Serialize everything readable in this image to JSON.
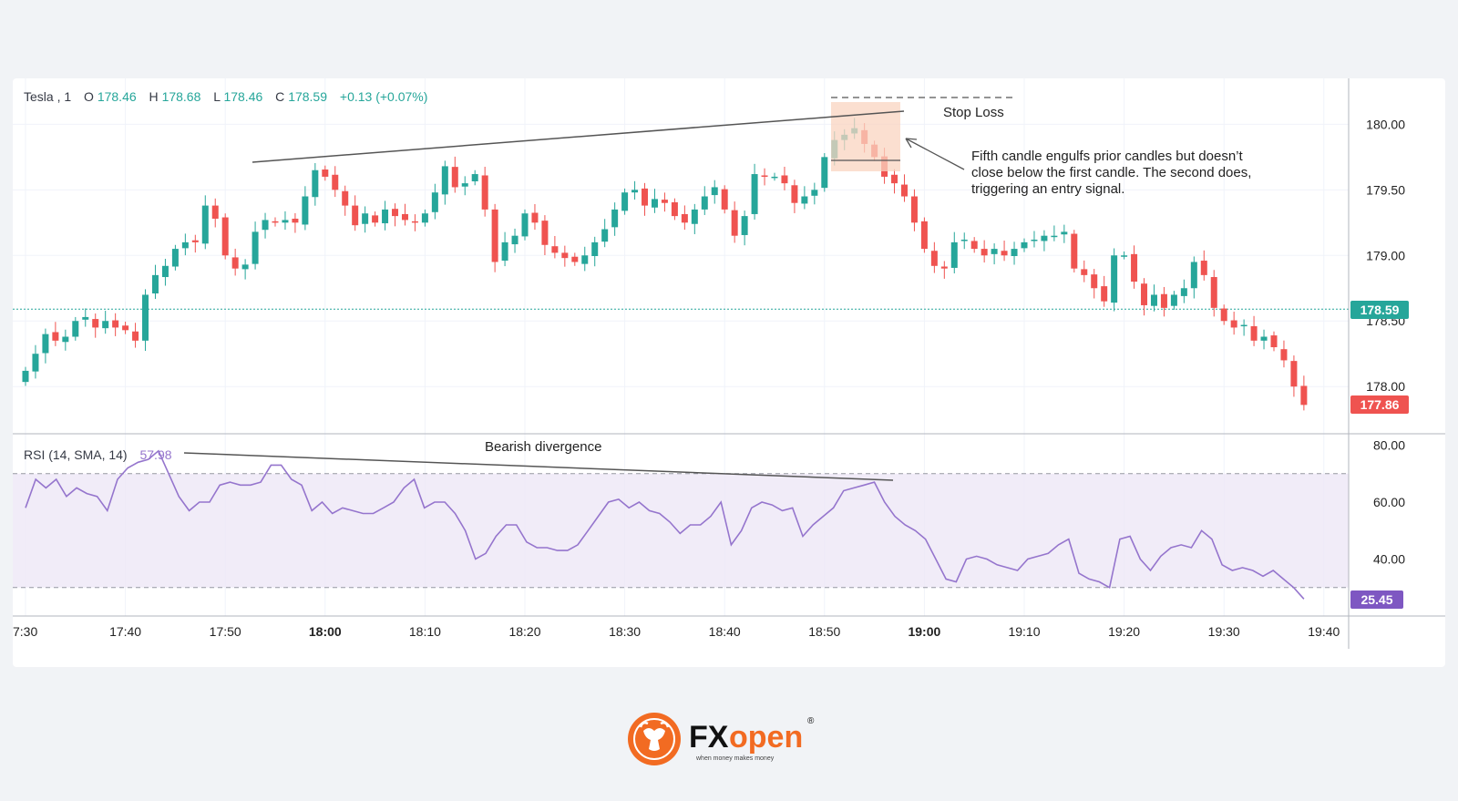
{
  "chart_data": {
    "type": "candlestick",
    "symbol": "Tesla",
    "interval": "1",
    "ohlc_legend": {
      "open_label": "O",
      "open": "178.46",
      "high_label": "H",
      "high": "178.68",
      "low_label": "L",
      "low": "178.46",
      "close_label": "C",
      "close": "178.59",
      "change": "+0.13 (+0.07%)"
    },
    "price_axis": {
      "ticks": [
        178.0,
        178.5,
        179.0,
        179.5,
        180.0
      ],
      "tick_labels": [
        "178.00",
        "178.50",
        "179.00",
        "179.50",
        "180.00"
      ],
      "range": [
        177.64,
        180.35
      ]
    },
    "time_axis": {
      "labels": [
        "7:30",
        "17:40",
        "17:50",
        "18:00",
        "18:10",
        "18:20",
        "18:30",
        "18:40",
        "18:50",
        "19:00",
        "19:10",
        "19:20",
        "19:30",
        "19:40"
      ],
      "bold_labels": [
        "18:00",
        "19:00"
      ]
    },
    "candles_close": [
      178.12,
      178.25,
      178.4,
      178.35,
      178.38,
      178.5,
      178.53,
      178.45,
      178.5,
      178.45,
      178.43,
      178.35,
      178.7,
      178.85,
      178.92,
      179.05,
      179.1,
      179.1,
      179.38,
      179.28,
      179.0,
      178.9,
      178.93,
      179.18,
      179.27,
      179.25,
      179.27,
      179.25,
      179.45,
      179.65,
      179.6,
      179.5,
      179.38,
      179.23,
      179.32,
      179.25,
      179.35,
      179.3,
      179.27,
      179.25,
      179.32,
      179.48,
      179.68,
      179.52,
      179.55,
      179.62,
      179.35,
      178.95,
      179.1,
      179.15,
      179.32,
      179.25,
      179.08,
      179.02,
      178.98,
      178.95,
      179.0,
      179.1,
      179.2,
      179.35,
      179.48,
      179.5,
      179.38,
      179.43,
      179.4,
      179.3,
      179.25,
      179.35,
      179.45,
      179.52,
      179.35,
      179.15,
      179.3,
      179.62,
      179.6,
      179.6,
      179.55,
      179.4,
      179.45,
      179.5,
      179.75,
      179.88,
      179.92,
      179.97,
      179.85,
      179.75,
      179.6,
      179.55,
      179.45,
      179.25,
      179.05,
      178.92,
      178.9,
      179.1,
      179.12,
      179.05,
      179.0,
      179.05,
      179.0,
      179.05,
      179.1,
      179.12,
      179.15,
      179.15,
      179.18,
      178.9,
      178.85,
      178.75,
      178.65,
      179.0,
      179.0,
      178.8,
      178.62,
      178.7,
      178.6,
      178.7,
      178.75,
      178.95,
      178.85,
      178.6,
      178.5,
      178.45,
      178.47,
      178.35,
      178.38,
      178.3,
      178.2,
      178.0,
      177.86
    ],
    "rsi": {
      "label": "RSI (14, SMA, 14)",
      "value_label": "57.98",
      "last_value": "25.45",
      "axis_ticks": [
        "80.00",
        "60.00",
        "40.00"
      ],
      "band_upper": 70,
      "band_lower": 30,
      "range": [
        20,
        84
      ]
    },
    "markers": {
      "last_price": "178.59",
      "current_price": "177.86"
    },
    "annotations": {
      "stop_loss": "Stop Loss",
      "note_line_1": "Fifth candle engulfs prior candles but doesn’t",
      "note_line_2": "close below the first candle. The second does,",
      "note_line_3": "triggering an entry signal.",
      "divergence": "Bearish divergence"
    },
    "colors": {
      "up": "#26a69a",
      "down": "#ef5350",
      "rsi_line": "#9575cd",
      "rsi_band": "#ede7f6",
      "last_price_badge": "#26a69a",
      "current_price_badge": "#ef5350",
      "rsi_badge": "#7e57c2",
      "highlight_box": "#fad4c0"
    }
  },
  "branding": {
    "logo_text_fx": "FX",
    "logo_text_open": "open",
    "tagline": "when money makes money",
    "registered": "®"
  }
}
